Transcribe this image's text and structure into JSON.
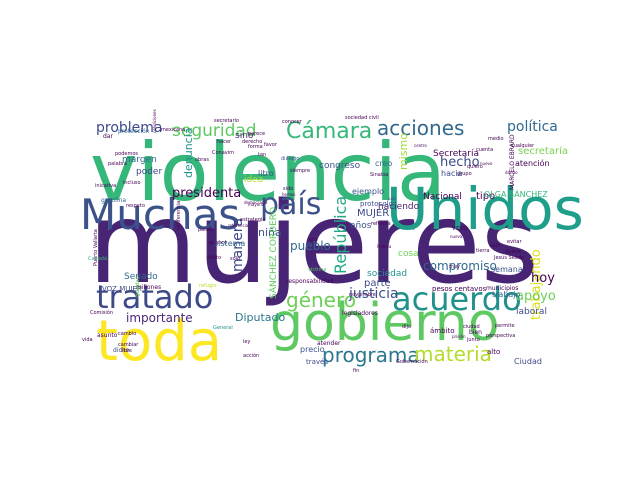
{
  "colors": {
    "purple": "#440154",
    "indigo": "#3b528b",
    "teal": "#21918c",
    "green": "#5ec962",
    "yellow": "#fde725",
    "lime": "#b5de2b",
    "slate": "#31688e",
    "sea": "#35b779"
  },
  "words": [
    {
      "text": "mujeres",
      "color": "#482475"
    },
    {
      "text": "violencia",
      "color": "#35b779"
    },
    {
      "text": "Unidos",
      "color": "#1f9e89"
    },
    {
      "text": "Muchas",
      "color": "#3b528b"
    },
    {
      "text": "gobierno",
      "color": "#5ec962"
    },
    {
      "text": "toda",
      "color": "#fde725"
    },
    {
      "text": "acuerdo",
      "color": "#21918c"
    },
    {
      "text": "tratado",
      "color": "#3e4989"
    },
    {
      "text": "país",
      "color": "#3b528b"
    },
    {
      "text": "Cámara",
      "color": "#35b779"
    },
    {
      "text": "acciones",
      "color": "#31688e"
    },
    {
      "text": "programa",
      "color": "#2a788e"
    },
    {
      "text": "materia",
      "color": "#b5de2b"
    },
    {
      "text": "género",
      "color": "#6ece58"
    },
    {
      "text": "seguridad",
      "color": "#5ec962"
    },
    {
      "text": "problema",
      "color": "#3e4989"
    },
    {
      "text": "política",
      "color": "#31688e"
    },
    {
      "text": "República",
      "color": "#22a884"
    },
    {
      "text": "trabajando",
      "color": "#d8e219"
    },
    {
      "text": "justicia",
      "color": "#3b528b"
    },
    {
      "text": "apoyo",
      "color": "#6ece58"
    },
    {
      "text": "compromiso",
      "color": "#31688e"
    },
    {
      "text": "hecho",
      "color": "#3e4989"
    },
    {
      "text": "presidenta",
      "color": "#440154"
    },
    {
      "text": "pueblo",
      "color": "#31688e"
    },
    {
      "text": "niña",
      "color": "#3b528b"
    },
    {
      "text": "manera",
      "color": "#3e4989"
    },
    {
      "text": "importante",
      "color": "#482878"
    },
    {
      "text": "Diputado",
      "color": "#2a788e"
    },
    {
      "text": "hoy",
      "color": "#440154"
    },
    {
      "text": "parte",
      "color": "#3e4989"
    },
    {
      "text": "denuncia",
      "color": "#21918c"
    },
    {
      "text": "mismo",
      "color": "#a0da39"
    },
    {
      "text": "secretaría",
      "color": "#7ad151"
    },
    {
      "text": "Secretaría",
      "color": "#440154"
    },
    {
      "text": "haciendo",
      "color": "#481f70"
    },
    {
      "text": "congreso",
      "color": "#3b528b"
    },
    {
      "text": "MUJER",
      "color": "#3e4989"
    },
    {
      "text": "Senado",
      "color": "#31688e"
    },
    {
      "text": "margen",
      "color": "#31688e"
    },
    {
      "text": "poder",
      "color": "#3e4989"
    },
    {
      "text": "sino",
      "color": "#481f70"
    },
    {
      "text": "idea",
      "color": "#b5de2b"
    },
    {
      "text": "litro",
      "color": "#3b528b"
    },
    {
      "text": "años",
      "color": "#3b528b"
    },
    {
      "text": "ejemplo",
      "color": "#3b528b"
    },
    {
      "text": "creo",
      "color": "#31688e"
    },
    {
      "text": "hacia",
      "color": "#3b528b"
    },
    {
      "text": "tipo",
      "color": "#440154"
    },
    {
      "text": "Nacional",
      "color": "#440154"
    },
    {
      "text": "sociedad",
      "color": "#21918c"
    },
    {
      "text": "cosa",
      "color": "#6ece58"
    },
    {
      "text": "semana",
      "color": "#3b528b"
    },
    {
      "text": "laboral",
      "color": "#3e4989"
    },
    {
      "text": "trabajo",
      "color": "#31688e"
    },
    {
      "text": "atención",
      "color": "#440154"
    },
    {
      "text": "OLGA SÁNCHEZ",
      "color": "#35b779"
    },
    {
      "text": "SÁNCHEZ CORDERO",
      "color": "#5ec962"
    },
    {
      "text": "VOZ MUJER",
      "color": "#3e4989"
    },
    {
      "text": "sistema",
      "color": "#31688e"
    },
    {
      "text": "protocolo",
      "color": "#3b528b"
    },
    {
      "text": "Ciudad",
      "color": "#3e4989"
    },
    {
      "text": "alto",
      "color": "#440154"
    },
    {
      "text": "precio",
      "color": "#3b528b"
    },
    {
      "text": "través",
      "color": "#3e4989"
    },
    {
      "text": "responsabilidad",
      "color": "#440154"
    },
    {
      "text": "pesos centavos",
      "color": "#440154"
    },
    {
      "text": "municipios",
      "color": "#440154"
    },
    {
      "text": "legisladores",
      "color": "#440154"
    },
    {
      "text": "asunto",
      "color": "#440154"
    },
    {
      "text": "dicho",
      "color": "#3e4989"
    },
    {
      "text": "inicativa",
      "color": "#440154"
    },
    {
      "text": "incluso",
      "color": "#440154"
    },
    {
      "text": "millones",
      "color": "#440154"
    },
    {
      "text": "sólo",
      "color": "#440154"
    },
    {
      "text": "ámbito",
      "color": "#440154"
    },
    {
      "text": "atender",
      "color": "#440154"
    },
    {
      "text": "noviembre",
      "color": "#440154"
    },
    {
      "text": "gasolina",
      "color": "#31688e"
    },
    {
      "text": "Sinaloa",
      "color": "#440154"
    },
    {
      "text": "diálogo",
      "color": "#3b528b"
    },
    {
      "text": "siempre",
      "color": "#440154"
    },
    {
      "text": "grupo",
      "color": "#440154"
    },
    {
      "text": "quiero",
      "color": "#440154"
    },
    {
      "text": "Jesús Seade",
      "color": "#440154"
    },
    {
      "text": "General",
      "color": "#21918c"
    },
    {
      "text": "acción",
      "color": "#440154"
    },
    {
      "text": "ley",
      "color": "#440154"
    },
    {
      "text": "bien",
      "color": "#440154"
    },
    {
      "text": "junto",
      "color": "#440154"
    },
    {
      "text": "VIDEO",
      "color": "#440154"
    },
    {
      "text": "dar",
      "color": "#440154"
    },
    {
      "text": "Gobernación",
      "color": "#440154"
    },
    {
      "text": "dijo",
      "color": "#440154"
    },
    {
      "text": "reforma",
      "color": "#440154"
    },
    {
      "text": "sociedad civil",
      "color": "#440154"
    },
    {
      "text": "podemos",
      "color": "#440154"
    },
    {
      "text": "cualquier",
      "color": "#440154"
    },
    {
      "text": "protección",
      "color": "#31688e"
    },
    {
      "text": "secretario",
      "color": "#440154"
    },
    {
      "text": "evitar",
      "color": "#440154"
    },
    {
      "text": "país",
      "color": "#3b528b"
    },
    {
      "text": "Política",
      "color": "#440154"
    },
    {
      "text": "quiere",
      "color": "#440154"
    },
    {
      "text": "conocer",
      "color": "#440154"
    },
    {
      "text": "medio",
      "color": "#440154"
    },
    {
      "text": "centro",
      "color": "#440154"
    },
    {
      "text": "estrategia",
      "color": "#440154"
    },
    {
      "text": "referencia",
      "color": "#440154"
    },
    {
      "text": "delito",
      "color": "#440154"
    },
    {
      "text": "mayoría",
      "color": "#440154"
    },
    {
      "text": "tierra",
      "color": "#440154"
    },
    {
      "text": "muy",
      "color": "#440154"
    },
    {
      "text": "permite",
      "color": "#440154"
    },
    {
      "text": "perspectiva",
      "color": "#440154"
    },
    {
      "text": "prisión",
      "color": "#440154"
    },
    {
      "text": "salir",
      "color": "#440154"
    },
    {
      "text": "víctima",
      "color": "#5ec962"
    },
    {
      "text": "países",
      "color": "#440154"
    },
    {
      "text": "refugio",
      "color": "#b5de2b"
    },
    {
      "text": "vida",
      "color": "#440154"
    },
    {
      "text": "Comisión",
      "color": "#440154"
    },
    {
      "text": "cambio",
      "color": "#440154"
    },
    {
      "text": "Canadá",
      "color": "#35b779"
    },
    {
      "text": "Puerto Vallarta",
      "color": "#440154"
    },
    {
      "text": "mexicana",
      "color": "#440154"
    },
    {
      "text": "hacer",
      "color": "#440154"
    },
    {
      "text": "forma",
      "color": "#440154"
    },
    {
      "text": "tan",
      "color": "#440154"
    },
    {
      "text": "favor",
      "color": "#440154"
    },
    {
      "text": "derecho",
      "color": "#440154"
    },
    {
      "text": "parece",
      "color": "#440154"
    },
    {
      "text": "reto",
      "color": "#440154"
    },
    {
      "text": "avance",
      "color": "#440154"
    },
    {
      "text": "Conavim",
      "color": "#440154"
    },
    {
      "text": "obras",
      "color": "#440154"
    },
    {
      "text": "sido",
      "color": "#440154"
    },
    {
      "text": "nueva",
      "color": "#440154"
    },
    {
      "text": "dando",
      "color": "#440154"
    },
    {
      "text": "nuevo",
      "color": "#440154"
    },
    {
      "text": "MARCELO EBRARD",
      "color": "#440154"
    },
    {
      "text": "cuenta",
      "color": "#440154"
    },
    {
      "text": "condiciones",
      "color": "#440154"
    },
    {
      "text": "igualdad",
      "color": "#5ec962"
    },
    {
      "text": "fin",
      "color": "#440154"
    },
    {
      "text": "democracia",
      "color": "#440154"
    },
    {
      "text": "conferencia",
      "color": "#440154"
    },
    {
      "text": "palabra",
      "color": "#440154"
    },
    {
      "text": "libre",
      "color": "#440154"
    },
    {
      "text": "cambiar",
      "color": "#440154"
    },
    {
      "text": "respeto",
      "color": "#440154"
    },
    {
      "text": "hemos",
      "color": "#440154"
    },
    {
      "text": "ciudad",
      "color": "#440154"
    }
  ]
}
